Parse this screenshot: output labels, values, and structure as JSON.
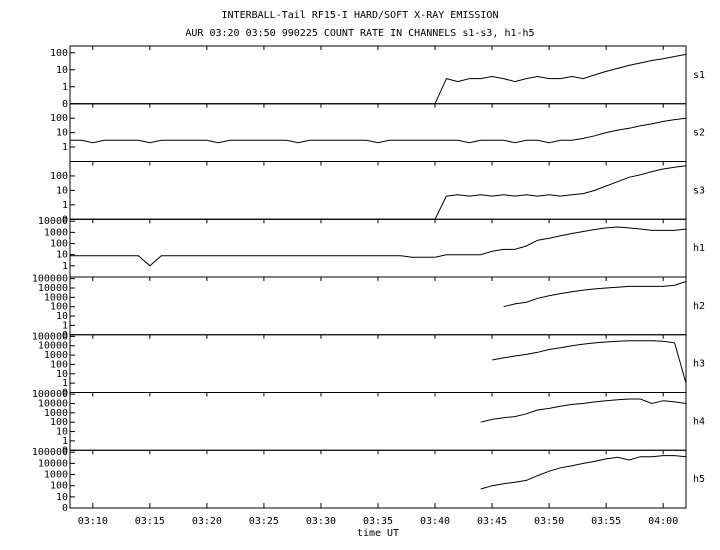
{
  "chart_data": {
    "type": "line",
    "title": "INTERBALL-Tail RF15-I HARD/SOFT X-RAY EMISSION",
    "subtitle": "AUR 03:20 03:50 990225  COUNT RATE IN CHANNELS s1-s3, h1-h5",
    "x_label": "time UT",
    "yscale": "log",
    "color": "#000000",
    "xlim": [
      "03:08",
      "04:02"
    ],
    "xticks": [
      "03:10",
      "03:15",
      "03:20",
      "03:25",
      "03:30",
      "03:35",
      "03:40",
      "03:45",
      "03:50",
      "03:55",
      "04:00"
    ],
    "x": [
      "03:08",
      "03:09",
      "03:10",
      "03:11",
      "03:12",
      "03:13",
      "03:14",
      "03:15",
      "03:16",
      "03:17",
      "03:18",
      "03:19",
      "03:20",
      "03:21",
      "03:22",
      "03:23",
      "03:24",
      "03:25",
      "03:26",
      "03:27",
      "03:28",
      "03:29",
      "03:30",
      "03:31",
      "03:32",
      "03:33",
      "03:34",
      "03:35",
      "03:36",
      "03:37",
      "03:38",
      "03:39",
      "03:40",
      "03:41",
      "03:42",
      "03:43",
      "03:44",
      "03:45",
      "03:46",
      "03:47",
      "03:48",
      "03:49",
      "03:50",
      "03:51",
      "03:52",
      "03:53",
      "03:54",
      "03:55",
      "03:56",
      "03:57",
      "03:58",
      "03:59",
      "04:00",
      "04:01",
      "04:02"
    ],
    "panels": [
      {
        "label": "s1",
        "ylim": [
          0,
          250
        ],
        "yticks": [
          0,
          1,
          10,
          100
        ],
        "values": [
          0,
          0,
          0,
          0,
          0,
          0,
          0,
          0,
          0,
          0,
          0,
          0,
          0,
          0,
          0,
          0,
          0,
          0,
          0,
          0,
          0,
          0,
          0,
          0,
          0,
          0,
          0,
          0,
          0,
          0,
          0,
          0,
          0,
          3,
          2,
          3,
          3,
          4,
          3,
          2,
          3,
          4,
          3,
          3,
          4,
          3,
          5,
          8,
          12,
          18,
          25,
          35,
          45,
          60,
          80
        ]
      },
      {
        "label": "s2",
        "ylim": [
          0,
          1000
        ],
        "yticks": [
          1,
          10,
          100
        ],
        "values": [
          3,
          3,
          2,
          3,
          3,
          3,
          3,
          2,
          3,
          3,
          3,
          3,
          3,
          2,
          3,
          3,
          3,
          3,
          3,
          3,
          2,
          3,
          3,
          3,
          3,
          3,
          3,
          2,
          3,
          3,
          3,
          3,
          3,
          3,
          3,
          2,
          3,
          3,
          3,
          2,
          3,
          3,
          2,
          3,
          3,
          4,
          6,
          10,
          15,
          20,
          30,
          40,
          60,
          80,
          100
        ]
      },
      {
        "label": "s3",
        "ylim": [
          0,
          1000
        ],
        "yticks": [
          0,
          1,
          10,
          100
        ],
        "values": [
          0,
          0,
          0,
          0,
          0,
          0,
          0,
          0,
          0,
          0,
          0,
          0,
          0,
          0,
          0,
          0,
          0,
          0,
          0,
          0,
          0,
          0,
          0,
          0,
          0,
          0,
          0,
          0,
          0,
          0,
          0,
          0,
          0,
          4,
          5,
          4,
          5,
          4,
          5,
          4,
          5,
          4,
          5,
          4,
          5,
          6,
          10,
          20,
          40,
          80,
          120,
          200,
          300,
          400,
          500
        ]
      },
      {
        "label": "h1",
        "ylim": [
          0,
          15000
        ],
        "yticks": [
          1,
          10,
          100,
          1000,
          10000
        ],
        "values": [
          8,
          8,
          8,
          8,
          8,
          8,
          8,
          1,
          8,
          8,
          8,
          8,
          8,
          8,
          8,
          8,
          8,
          8,
          8,
          8,
          8,
          8,
          8,
          8,
          8,
          8,
          8,
          8,
          8,
          8,
          6,
          6,
          6,
          10,
          10,
          10,
          10,
          20,
          30,
          30,
          60,
          200,
          300,
          500,
          800,
          1200,
          1800,
          2500,
          3000,
          2500,
          2000,
          1500,
          1500,
          1500,
          2000
        ]
      },
      {
        "label": "h2",
        "ylim": [
          0,
          150000
        ],
        "yticks": [
          0,
          1,
          10,
          100,
          1000,
          10000,
          100000
        ],
        "values": [
          null,
          null,
          null,
          null,
          null,
          null,
          null,
          null,
          null,
          null,
          null,
          null,
          null,
          null,
          null,
          null,
          null,
          null,
          null,
          null,
          null,
          null,
          null,
          null,
          null,
          null,
          null,
          null,
          null,
          null,
          null,
          null,
          null,
          null,
          null,
          null,
          null,
          null,
          100,
          200,
          300,
          800,
          1500,
          2500,
          4000,
          6000,
          8000,
          10000,
          12000,
          15000,
          15000,
          15000,
          15000,
          20000,
          50000
        ]
      },
      {
        "label": "h3",
        "ylim": [
          0,
          150000
        ],
        "yticks": [
          0,
          1,
          10,
          100,
          1000,
          10000,
          100000
        ],
        "values": [
          null,
          null,
          null,
          null,
          null,
          null,
          null,
          null,
          null,
          null,
          null,
          null,
          null,
          null,
          null,
          null,
          null,
          null,
          null,
          null,
          null,
          null,
          null,
          null,
          null,
          null,
          null,
          null,
          null,
          null,
          null,
          null,
          null,
          null,
          null,
          null,
          null,
          300,
          500,
          800,
          1200,
          2000,
          4000,
          6000,
          10000,
          15000,
          20000,
          25000,
          30000,
          35000,
          35000,
          35000,
          30000,
          20000,
          1
        ]
      },
      {
        "label": "h4",
        "ylim": [
          0,
          150000
        ],
        "yticks": [
          0,
          1,
          10,
          100,
          1000,
          10000,
          100000
        ],
        "values": [
          null,
          null,
          null,
          null,
          null,
          null,
          null,
          null,
          null,
          null,
          null,
          null,
          null,
          null,
          null,
          null,
          null,
          null,
          null,
          null,
          null,
          null,
          null,
          null,
          null,
          null,
          null,
          null,
          null,
          null,
          null,
          null,
          null,
          null,
          null,
          null,
          100,
          200,
          300,
          400,
          800,
          2000,
          3000,
          5000,
          8000,
          10000,
          15000,
          20000,
          25000,
          30000,
          30000,
          10000,
          20000,
          15000,
          10000
        ]
      },
      {
        "label": "h5",
        "ylim": [
          0,
          150000
        ],
        "yticks": [
          0,
          10,
          100,
          1000,
          10000,
          100000
        ],
        "values": [
          null,
          null,
          null,
          null,
          null,
          null,
          null,
          null,
          null,
          null,
          null,
          null,
          null,
          null,
          null,
          null,
          null,
          null,
          null,
          null,
          null,
          null,
          null,
          null,
          null,
          null,
          null,
          null,
          null,
          null,
          null,
          null,
          null,
          null,
          null,
          null,
          50,
          100,
          150,
          200,
          300,
          800,
          2000,
          4000,
          6000,
          10000,
          15000,
          25000,
          35000,
          20000,
          40000,
          40000,
          50000,
          50000,
          40000
        ]
      }
    ]
  }
}
